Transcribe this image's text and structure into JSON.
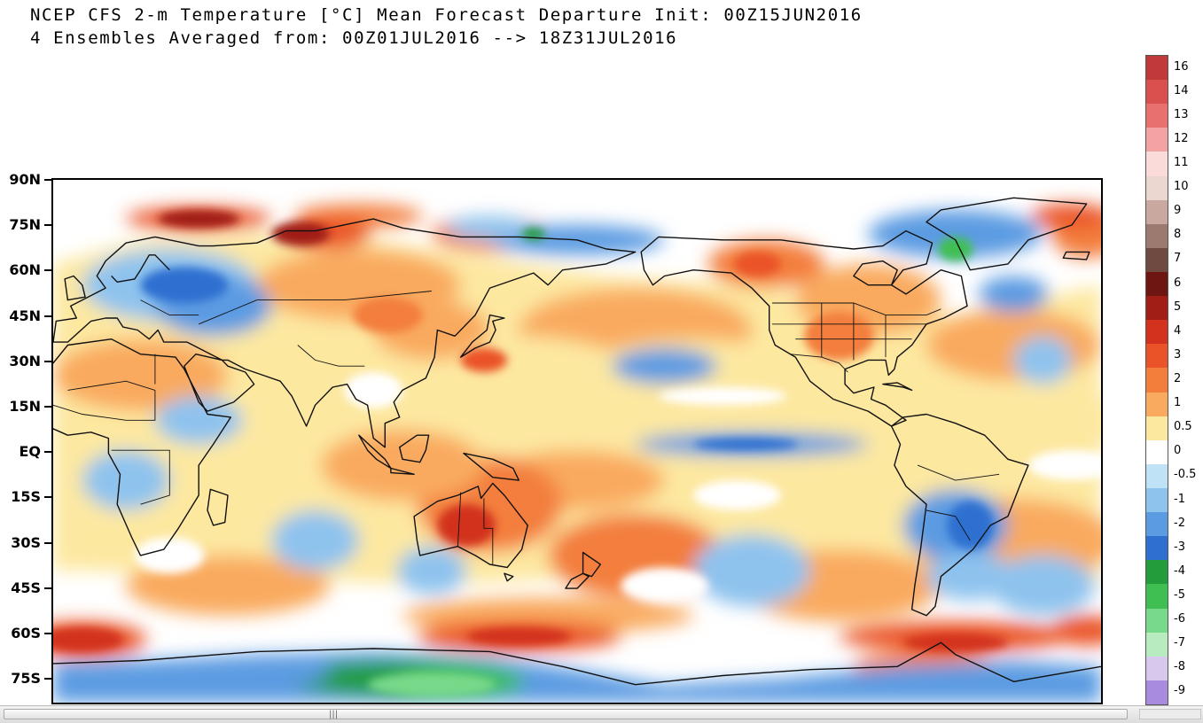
{
  "title": {
    "line1": "NCEP CFS 2-m Temperature [°C] Mean Forecast Departure Init: 00Z15JUN2016",
    "line2": "4 Ensembles Averaged from: 00Z01JUL2016 --> 18Z31JUL2016"
  },
  "map": {
    "lat_labels": [
      "90N",
      "75N",
      "60N",
      "45N",
      "30N",
      "15N",
      "EQ",
      "15S",
      "30S",
      "45S",
      "60S",
      "75S"
    ],
    "lat_values": [
      90,
      75,
      60,
      45,
      30,
      15,
      0,
      -15,
      -30,
      -45,
      -60,
      -75
    ],
    "lon_range": [
      -10,
      350
    ],
    "lat_range": [
      -84,
      90
    ]
  },
  "colorbar": {
    "levels": [
      {
        "label": "16",
        "color": "#c03a3a"
      },
      {
        "label": "14",
        "color": "#d9504f"
      },
      {
        "label": "13",
        "color": "#e8706f"
      },
      {
        "label": "12",
        "color": "#f3a3a3"
      },
      {
        "label": "11",
        "color": "#fbdada"
      },
      {
        "label": "10",
        "color": "#ecd6d0"
      },
      {
        "label": "9",
        "color": "#c9a99f"
      },
      {
        "label": "8",
        "color": "#9c7a70"
      },
      {
        "label": "7",
        "color": "#6f4a40"
      },
      {
        "label": "6",
        "color": "#6e1612"
      },
      {
        "label": "5",
        "color": "#a01e16"
      },
      {
        "label": "4",
        "color": "#d2321e"
      },
      {
        "label": "3",
        "color": "#ea5228"
      },
      {
        "label": "2",
        "color": "#f37e3c"
      },
      {
        "label": "1",
        "color": "#f9aa5e"
      },
      {
        "label": "0.5",
        "color": "#fde8a0"
      },
      {
        "label": "0",
        "color": "#ffffff"
      },
      {
        "label": "-0.5",
        "color": "#bfe2f6"
      },
      {
        "label": "-1",
        "color": "#8ec3ee"
      },
      {
        "label": "-2",
        "color": "#5b9be2"
      },
      {
        "label": "-3",
        "color": "#2f6fd0"
      },
      {
        "label": "-4",
        "color": "#239c3c"
      },
      {
        "label": "-5",
        "color": "#3fbf52"
      },
      {
        "label": "-6",
        "color": "#79d98a"
      },
      {
        "label": "-7",
        "color": "#b8ecbe"
      },
      {
        "label": "-8",
        "color": "#d7c9ee"
      },
      {
        "label": "-9",
        "color": "#a88bdf"
      }
    ]
  }
}
